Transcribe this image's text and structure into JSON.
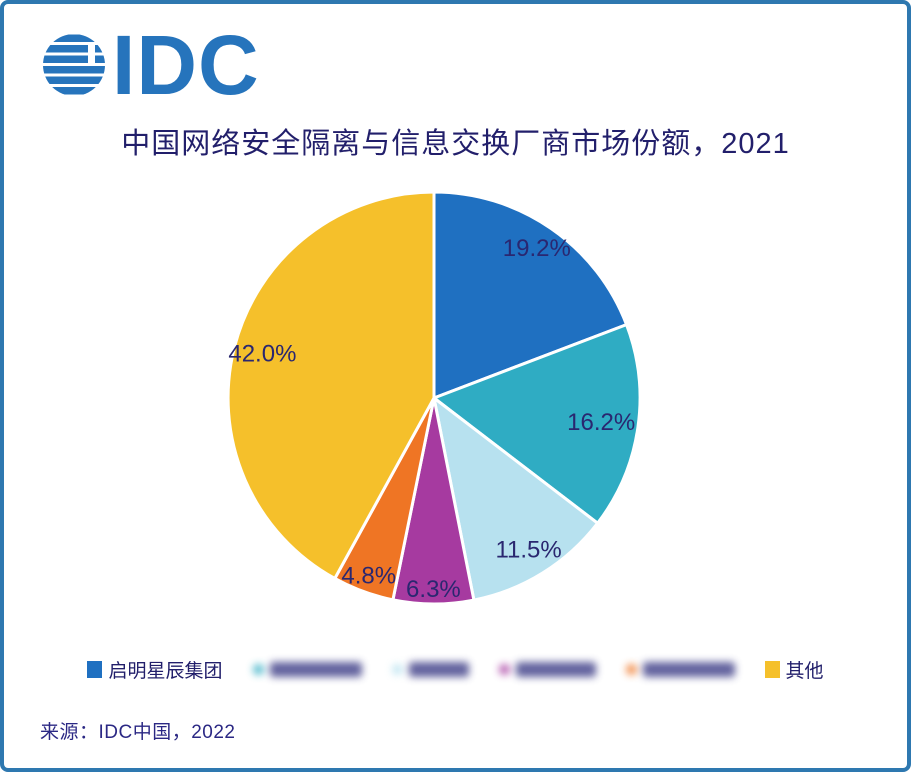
{
  "branding": {
    "logo_text": "IDC"
  },
  "header": {
    "title": "中国网络安全隔离与信息交换厂商市场份额，2021"
  },
  "chart_data": {
    "type": "pie",
    "title": "中国网络安全隔离与信息交换厂商市场份额，2021",
    "unit": "%",
    "start_angle_deg": 0,
    "direction": "clockwise",
    "legend_position": "bottom",
    "categories": [
      "启明星辰集团",
      "",
      "",
      "",
      "",
      "其他"
    ],
    "values": [
      19.2,
      16.2,
      11.5,
      6.3,
      4.8,
      42.0
    ],
    "slices": [
      {
        "label": "启明星辰集团",
        "value": 19.2,
        "label_text": "19.2%",
        "color": "#1F70C1",
        "legend_blurred": false
      },
      {
        "label": "",
        "value": 16.2,
        "label_text": "16.2%",
        "color": "#2FACC3",
        "legend_blurred": true
      },
      {
        "label": "",
        "value": 11.5,
        "label_text": "11.5%",
        "color": "#B7E1EF",
        "legend_blurred": true
      },
      {
        "label": "",
        "value": 6.3,
        "label_text": "6.3%",
        "color": "#A63AA0",
        "legend_blurred": true
      },
      {
        "label": "",
        "value": 4.8,
        "label_text": "4.8%",
        "color": "#EF7524",
        "legend_blurred": true
      },
      {
        "label": "其他",
        "value": 42.0,
        "label_text": "42.0%",
        "color": "#F5C02B",
        "legend_blurred": false
      }
    ],
    "label_color": "#2A2770"
  },
  "legend": {
    "items": [
      {
        "label": "启明星辰集团",
        "blurred": false
      },
      {
        "label": "",
        "blurred": true
      },
      {
        "label": "",
        "blurred": true
      },
      {
        "label": "",
        "blurred": true
      },
      {
        "label": "",
        "blurred": true
      },
      {
        "label": "其他",
        "blurred": false
      }
    ]
  },
  "footer": {
    "source": "来源：IDC中国，2022"
  }
}
